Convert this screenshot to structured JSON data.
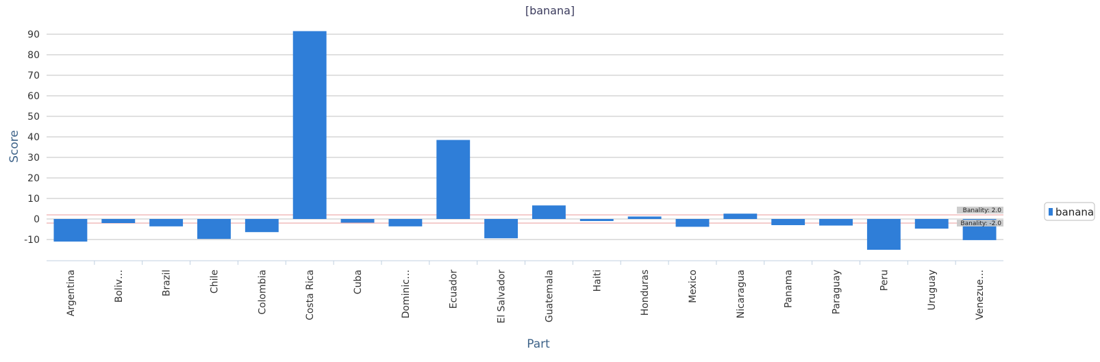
{
  "chart_data": {
    "type": "bar",
    "title": "[banana]",
    "xlabel": "Part",
    "ylabel": "Score",
    "categories": [
      "Argentina",
      "Boliv…",
      "Brazil",
      "Chile",
      "Colombia",
      "Costa Rica",
      "Cuba",
      "Dominic…",
      "Ecuador",
      "El Salvador",
      "Guatemala",
      "Haiti",
      "Honduras",
      "Mexico",
      "Nicaragua",
      "Panama",
      "Paraguay",
      "Peru",
      "Uruguay",
      "Venezue…"
    ],
    "series": [
      {
        "name": "banana",
        "color": "#2f7ed8",
        "values": [
          -11,
          -2,
          -3.6,
          -9.7,
          -6.4,
          91.5,
          -1.8,
          -3.6,
          38.5,
          -9.4,
          6.6,
          -1,
          1.2,
          -3.8,
          2.6,
          -3,
          -3.2,
          -15,
          -4.7,
          -10.3
        ]
      }
    ],
    "ylim": [
      -20,
      95
    ],
    "yticks": [
      -10,
      0,
      10,
      20,
      30,
      40,
      50,
      60,
      70,
      80,
      90
    ],
    "grid": true,
    "legend": "right",
    "bands": [
      {
        "label": "Banality: 2.0",
        "value": 2.0,
        "color": "#e89a9a"
      },
      {
        "label": "Banality: -2.0",
        "value": -2.0,
        "color": "#e89a9a"
      }
    ]
  }
}
